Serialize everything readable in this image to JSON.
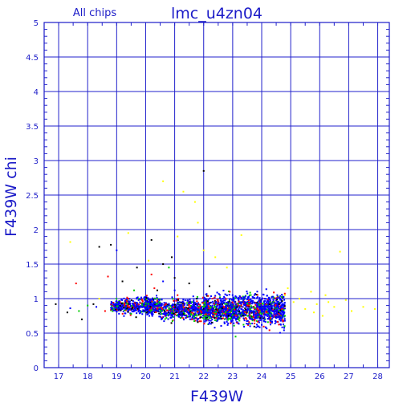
{
  "chart_data": {
    "type": "scatter",
    "title": "lmc_u4zn04",
    "subtitle": "All chips",
    "xlabel": "F439W",
    "ylabel": "F439W chi",
    "xlim": [
      16.5,
      28.4
    ],
    "ylim": [
      0,
      5
    ],
    "x_ticks": [
      "17",
      "18",
      "19",
      "20",
      "21",
      "22",
      "23",
      "24",
      "25",
      "26",
      "27",
      "28"
    ],
    "y_ticks": [
      "0",
      "0.5",
      "1",
      "1.5",
      "2",
      "2.5",
      "3",
      "3.5",
      "4",
      "4.5",
      "5"
    ],
    "grid": true,
    "colors": {
      "axes": "#1c1cc8",
      "grid": "#2222cc",
      "series": [
        "#0000ff",
        "#ff0000",
        "#00cc00",
        "#000000",
        "#ffff00"
      ]
    },
    "series": [
      {
        "color": "#0000ff",
        "points": [
          [
            17.4,
            0.86
          ],
          [
            18.3,
            0.88
          ],
          [
            18.9,
            0.92
          ],
          [
            19.3,
            0.85
          ],
          [
            19.6,
            0.9
          ],
          [
            19.9,
            0.88
          ],
          [
            20.1,
            0.8
          ],
          [
            20.3,
            0.95
          ],
          [
            20.5,
            0.85
          ],
          [
            20.7,
            0.75
          ],
          [
            20.9,
            0.9
          ],
          [
            21.1,
            0.82
          ],
          [
            21.3,
            0.95
          ],
          [
            21.5,
            0.78
          ],
          [
            21.7,
            0.88
          ],
          [
            21.9,
            0.85
          ],
          [
            22.1,
            0.8
          ],
          [
            22.3,
            0.9
          ],
          [
            22.5,
            0.72
          ],
          [
            22.7,
            0.85
          ],
          [
            22.9,
            0.78
          ],
          [
            23.1,
            0.92
          ],
          [
            23.3,
            0.75
          ],
          [
            23.5,
            0.82
          ],
          [
            23.7,
            0.7
          ],
          [
            23.9,
            0.88
          ],
          [
            24.1,
            0.76
          ],
          [
            24.3,
            0.84
          ],
          [
            24.5,
            0.72
          ],
          [
            24.7,
            0.8
          ],
          [
            22.8,
            1.05
          ],
          [
            23.4,
            1.02
          ],
          [
            24.0,
            0.62
          ],
          [
            23.6,
            0.6
          ],
          [
            22.2,
            0.65
          ],
          [
            20.6,
            1.25
          ],
          [
            19.0,
            1.7
          ],
          [
            24.4,
            0.98
          ],
          [
            21.0,
            1.12
          ],
          [
            23.0,
            0.68
          ]
        ]
      },
      {
        "color": "#ff0000",
        "points": [
          [
            17.6,
            1.22
          ],
          [
            18.6,
            0.82
          ],
          [
            19.4,
            1.0
          ],
          [
            19.9,
            0.96
          ],
          [
            20.3,
            1.15
          ],
          [
            20.7,
            0.92
          ],
          [
            21.1,
            1.05
          ],
          [
            21.5,
            0.88
          ],
          [
            21.9,
            0.82
          ],
          [
            22.3,
            1.0
          ],
          [
            22.7,
            0.88
          ],
          [
            23.1,
            0.76
          ],
          [
            23.5,
            0.9
          ],
          [
            23.9,
            0.8
          ],
          [
            24.3,
            0.72
          ],
          [
            24.7,
            0.85
          ],
          [
            20.2,
            1.35
          ],
          [
            18.7,
            1.32
          ],
          [
            21.6,
            0.7
          ],
          [
            22.9,
            1.1
          ]
        ]
      },
      {
        "color": "#00cc00",
        "points": [
          [
            17.7,
            0.82
          ],
          [
            18.0,
            0.9
          ],
          [
            18.9,
            0.85
          ],
          [
            19.5,
            0.78
          ],
          [
            20.0,
            0.9
          ],
          [
            20.4,
            1.0
          ],
          [
            20.8,
            0.85
          ],
          [
            21.2,
            0.72
          ],
          [
            21.6,
            0.95
          ],
          [
            22.0,
            0.88
          ],
          [
            22.4,
            0.8
          ],
          [
            22.8,
            0.92
          ],
          [
            23.2,
            0.7
          ],
          [
            23.6,
            0.85
          ],
          [
            24.0,
            0.78
          ],
          [
            24.4,
            0.95
          ],
          [
            24.8,
            0.75
          ],
          [
            20.8,
            1.45
          ],
          [
            23.1,
            0.45
          ],
          [
            19.6,
            1.12
          ]
        ]
      },
      {
        "color": "#000000",
        "points": [
          [
            16.9,
            0.92
          ],
          [
            17.3,
            0.8
          ],
          [
            17.8,
            0.7
          ],
          [
            18.4,
            1.75
          ],
          [
            18.8,
            1.78
          ],
          [
            19.7,
            1.45
          ],
          [
            20.2,
            1.85
          ],
          [
            20.6,
            1.5
          ],
          [
            20.9,
            1.6
          ],
          [
            21.0,
            1.3
          ],
          [
            19.2,
            1.25
          ],
          [
            21.5,
            1.22
          ],
          [
            22.2,
            1.18
          ],
          [
            22.0,
            2.85
          ],
          [
            20.4,
            1.12
          ],
          [
            18.2,
            0.92
          ]
        ]
      },
      {
        "color": "#ffff00",
        "points": [
          [
            17.4,
            1.82
          ],
          [
            18.4,
            1.0
          ],
          [
            19.4,
            1.95
          ],
          [
            20.1,
            1.55
          ],
          [
            20.6,
            2.7
          ],
          [
            21.1,
            1.9
          ],
          [
            21.3,
            2.55
          ],
          [
            21.7,
            2.4
          ],
          [
            21.8,
            2.1
          ],
          [
            22.0,
            1.7
          ],
          [
            22.4,
            1.6
          ],
          [
            22.8,
            1.45
          ],
          [
            23.3,
            1.92
          ],
          [
            24.8,
            1.05
          ],
          [
            25.1,
            0.95
          ],
          [
            25.3,
            1.0
          ],
          [
            25.5,
            0.85
          ],
          [
            25.7,
            1.1
          ],
          [
            25.9,
            0.92
          ],
          [
            26.1,
            0.75
          ],
          [
            26.3,
            0.95
          ],
          [
            26.5,
            0.88
          ],
          [
            26.7,
            1.68
          ],
          [
            26.9,
            0.98
          ],
          [
            27.1,
            0.82
          ],
          [
            27.5,
            0.88
          ],
          [
            27.9,
            0.85
          ],
          [
            26.2,
            1.05
          ],
          [
            25.8,
            0.8
          ],
          [
            24.9,
            1.15
          ]
        ]
      }
    ]
  }
}
